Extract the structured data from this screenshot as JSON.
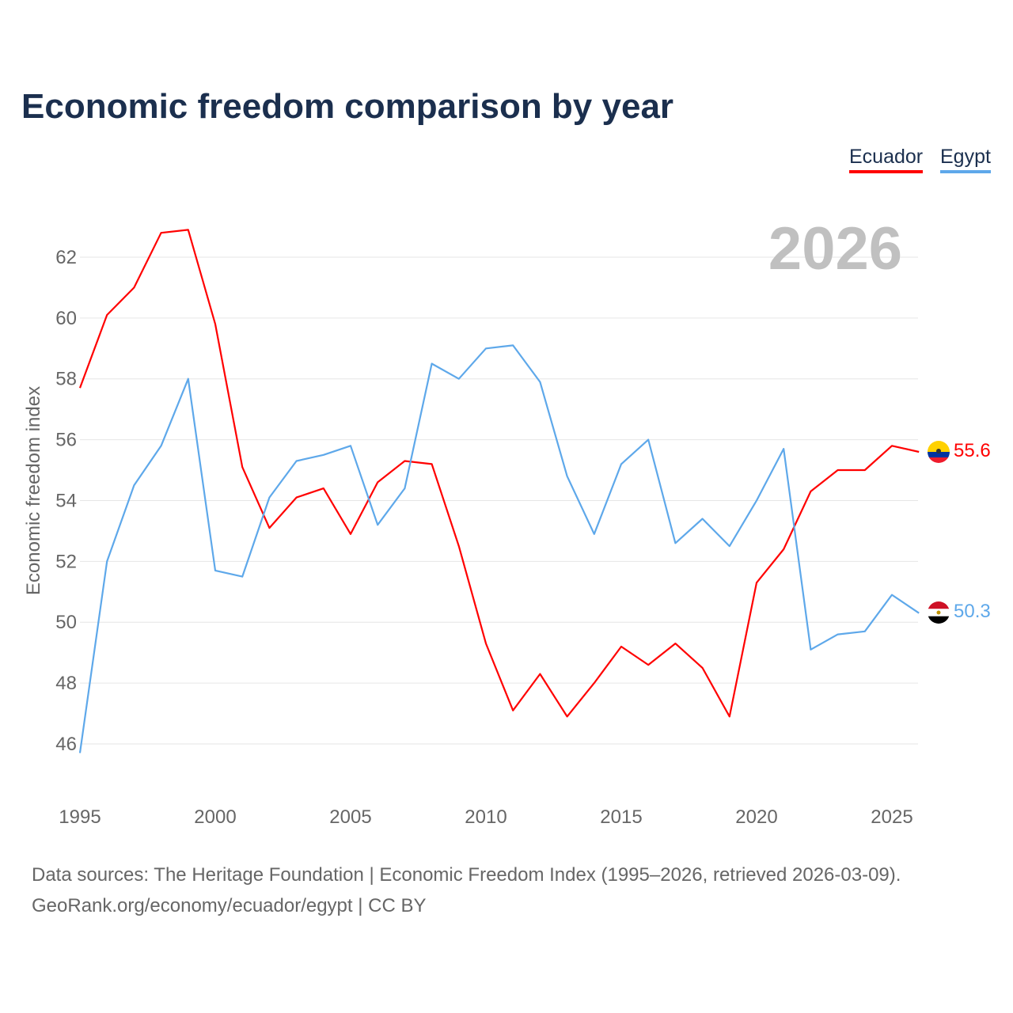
{
  "title": "Economic freedom comparison by year",
  "year_watermark": "2026",
  "source_line1": "Data sources: The Heritage Foundation | Economic Freedom Index (1995–2026, retrieved 2026-03-09).",
  "source_line2": "GeoRank.org/economy/ecuador/egypt | CC BY",
  "chart_data": {
    "type": "line",
    "title": "Economic freedom comparison by year",
    "xlabel": "",
    "ylabel": "Economic freedom index",
    "xlim": [
      1995,
      2026
    ],
    "ylim": [
      45.3,
      63.5
    ],
    "x_ticks": [
      1995,
      2000,
      2005,
      2010,
      2015,
      2020,
      2025
    ],
    "y_ticks": [
      46,
      48,
      50,
      52,
      54,
      56,
      58,
      60,
      62
    ],
    "grid": true,
    "legend_placement": "top-right",
    "x": [
      1995,
      1996,
      1997,
      1998,
      1999,
      2000,
      2001,
      2002,
      2003,
      2004,
      2005,
      2006,
      2007,
      2008,
      2009,
      2010,
      2011,
      2012,
      2013,
      2014,
      2015,
      2016,
      2017,
      2018,
      2019,
      2020,
      2021,
      2022,
      2023,
      2024,
      2025,
      2026
    ],
    "series": [
      {
        "name": "Ecuador",
        "color": "#ff0000",
        "end_label": "55.6",
        "values": [
          57.7,
          60.1,
          61.0,
          62.8,
          62.9,
          59.8,
          55.1,
          53.1,
          54.1,
          54.4,
          52.9,
          54.6,
          55.3,
          55.2,
          52.5,
          49.3,
          47.1,
          48.3,
          46.9,
          48.0,
          49.2,
          48.6,
          49.3,
          48.5,
          46.9,
          51.3,
          52.4,
          54.3,
          55.0,
          55.0,
          55.8,
          55.6
        ]
      },
      {
        "name": "Egypt",
        "color": "#5ea8ea",
        "end_label": "50.3",
        "values": [
          45.7,
          52.0,
          54.5,
          55.8,
          58.0,
          51.7,
          51.5,
          54.1,
          55.3,
          55.5,
          55.8,
          53.2,
          54.4,
          58.5,
          58.0,
          59.0,
          59.1,
          57.9,
          54.8,
          52.9,
          55.2,
          56.0,
          52.6,
          53.4,
          52.5,
          54.0,
          55.7,
          49.1,
          49.6,
          49.7,
          50.9,
          50.3
        ]
      }
    ]
  }
}
